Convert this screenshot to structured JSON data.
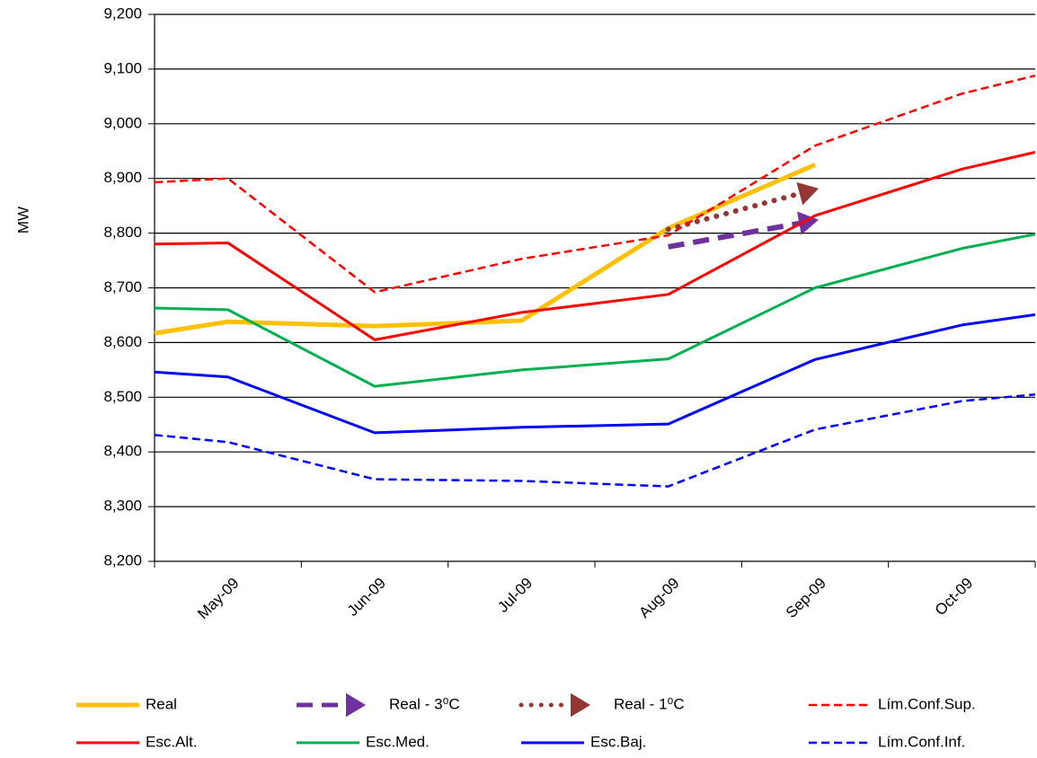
{
  "chart_data": {
    "type": "line",
    "y_label": "MW",
    "categories": [
      null,
      "May-09",
      "Jun-09",
      "Jul-09",
      "Aug-09",
      "Sep-09",
      "Oct-09",
      null
    ],
    "ylim": [
      8200,
      9200
    ],
    "yticks": [
      {
        "value": 8200,
        "label": "8,200"
      },
      {
        "value": 8300,
        "label": "8,300"
      },
      {
        "value": 8400,
        "label": "8,400"
      },
      {
        "value": 8500,
        "label": "8,500"
      },
      {
        "value": 8600,
        "label": "8,600"
      },
      {
        "value": 8700,
        "label": "8,700"
      },
      {
        "value": 8800,
        "label": "8,800"
      },
      {
        "value": 8900,
        "label": "8,900"
      },
      {
        "value": 9000,
        "label": "9,000"
      },
      {
        "value": 9100,
        "label": "9,100"
      },
      {
        "value": 9200,
        "label": "9,200"
      }
    ],
    "grid": true,
    "legend": "bottom",
    "series": [
      {
        "name": "Real",
        "color": "#FFC000",
        "style": "solid",
        "width": 5,
        "values": [
          8617,
          8638,
          8630,
          8640,
          8809,
          8925,
          null,
          null
        ]
      },
      {
        "name": "Real - 3⁰C",
        "color": "#7030A0",
        "style": "dashed",
        "width": 6,
        "arrow": true,
        "values": [
          null,
          null,
          null,
          null,
          8775,
          8823,
          null,
          null
        ]
      },
      {
        "name": "Real - 1⁰C",
        "color": "#943634",
        "style": "dotted",
        "width": 6,
        "arrow": true,
        "values": [
          null,
          null,
          null,
          null,
          8807,
          8880,
          null,
          null
        ]
      },
      {
        "name": "Lím.Conf.Sup.",
        "color": "#FF0000",
        "style": "dashed",
        "width": 2.5,
        "values": [
          8893,
          8900,
          8692,
          8753,
          8796,
          8960,
          9055,
          9088
        ]
      },
      {
        "name": "Esc.Alt.",
        "color": "#FF0000",
        "style": "solid",
        "width": 3,
        "values": [
          8780,
          8782,
          8605,
          8655,
          8688,
          8832,
          8917,
          8948
        ]
      },
      {
        "name": "Esc.Med.",
        "color": "#00B050",
        "style": "solid",
        "width": 3,
        "values": [
          8663,
          8660,
          8520,
          8550,
          8570,
          8700,
          8772,
          8798
        ]
      },
      {
        "name": "Esc.Baj.",
        "color": "#0000FF",
        "style": "solid",
        "width": 3,
        "values": [
          8546,
          8537,
          8435,
          8445,
          8451,
          8569,
          8632,
          8651
        ]
      },
      {
        "name": "Lím.Conf.Inf.",
        "color": "#0000FF",
        "style": "dashed",
        "width": 2.5,
        "values": [
          8431,
          8418,
          8350,
          8347,
          8337,
          8441,
          8493,
          8505
        ]
      }
    ]
  }
}
